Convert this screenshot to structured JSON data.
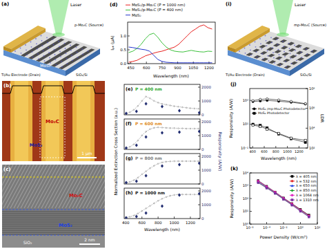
{
  "figure": {
    "panels": [
      {
        "label": "(a)",
        "texts": [
          "Laser",
          "p-Mo₂C (Source)",
          "Ti/Au Electrode (Drain)",
          "MoS₂",
          "SiO₂/Si"
        ]
      },
      {
        "label": "(b)",
        "texts": [
          "Mo₂C",
          "MoS₂",
          "1 μm"
        ]
      },
      {
        "label": "(c)",
        "texts": [
          "Mo₂C",
          "MoS₂",
          "SiO₂",
          "2 nm"
        ]
      },
      {
        "label": "(i)",
        "texts": [
          "Laser",
          "mp-Mo₂C (Source)",
          "Ti/Au Electrode (Drain)",
          "SiO₂/Si"
        ]
      }
    ]
  },
  "chart_data": [
    {
      "type": "line",
      "title": "(d)",
      "x_label": "Wavelength (nm)",
      "y_label": "Iₚₕ (μA)",
      "legend": "top",
      "x": [
        430,
        470,
        510,
        550,
        590,
        630,
        670,
        710,
        750,
        790,
        830,
        870,
        910,
        950,
        990,
        1030,
        1070,
        1110,
        1150,
        1190,
        1230
      ],
      "xlim": [
        420,
        1260
      ],
      "xticks": [
        450,
        600,
        750,
        900,
        1050,
        1200
      ],
      "ylim": [
        0,
        1.5
      ],
      "yticks": [
        {
          "value": 0,
          "label": "0.0"
        },
        {
          "value": 0.5,
          "label": "0.5"
        },
        {
          "value": 1,
          "label": "1.0"
        }
      ],
      "series": [
        {
          "name": "MoS₂/p-Mo₂C (P = 1000 nm)",
          "color": "#e8211f",
          "values": [
            0.05,
            0.08,
            0.12,
            0.2,
            0.28,
            0.33,
            0.38,
            0.42,
            0.45,
            0.5,
            0.55,
            0.6,
            0.7,
            0.85,
            1.0,
            1.15,
            1.25,
            1.35,
            1.4,
            1.3,
            1.25
          ]
        },
        {
          "name": "MoS₂/p-Mo₂C (P = 400 nm)",
          "color": "#3cc13c",
          "values": [
            0.4,
            0.45,
            0.55,
            0.7,
            0.9,
            1.05,
            1.1,
            0.95,
            0.75,
            0.6,
            0.5,
            0.45,
            0.43,
            0.42,
            0.45,
            0.48,
            0.45,
            0.43,
            0.42,
            0.45,
            0.44
          ]
        },
        {
          "name": "MoS₂",
          "color": "#2233cc",
          "values": [
            0.6,
            0.58,
            0.55,
            0.52,
            0.5,
            0.45,
            0.3,
            0.15,
            0.08,
            0.05,
            0.04,
            0.03,
            0.03,
            0.03,
            0.03,
            0.03,
            0.03,
            0.03,
            0.03,
            0.03,
            0.03
          ]
        }
      ]
    },
    {
      "type": "line",
      "title": "(e)",
      "annotations": [
        "P = 400 nm"
      ],
      "y_label": "Normalized Extinction Cross Section (a.u.)",
      "y2_label": "Responsivity (A/W)",
      "x": [
        400,
        450,
        500,
        550,
        600,
        650,
        700,
        750,
        800,
        850,
        900,
        950,
        1000,
        1050,
        1100,
        1150,
        1200,
        1250,
        1300
      ],
      "xlim": [
        380,
        1320
      ],
      "ylim": [
        0,
        1.2
      ],
      "yticks": [],
      "y2lim": [
        0,
        2200
      ],
      "y2ticks": [
        0,
        1000,
        2000
      ],
      "series": [
        {
          "color": "#888888",
          "line_style": "dotted",
          "marker": "open-circle",
          "values": [
            0.05,
            0.1,
            0.2,
            0.35,
            0.55,
            0.72,
            0.65,
            0.55,
            0.48,
            0.43,
            0.4,
            0.37,
            0.34,
            0.32,
            0.3,
            0.28,
            0.26,
            0.25,
            0.24
          ]
        },
        {
          "type": "scatter",
          "axis": "y2",
          "color": "#1f2a6e",
          "marker": "diamond",
          "x": [
            405,
            532,
            650,
            850,
            1064,
            1310
          ],
          "values": [
            100,
            250,
            800,
            600,
            300,
            150
          ]
        }
      ]
    },
    {
      "type": "line",
      "title": "(f)",
      "annotations": [
        "P = 600 nm"
      ],
      "x": [
        400,
        450,
        500,
        550,
        600,
        650,
        700,
        750,
        800,
        850,
        900,
        950,
        1000,
        1050,
        1100,
        1150,
        1200,
        1250,
        1300
      ],
      "xlim": [
        380,
        1320
      ],
      "ylim": [
        0,
        1.2
      ],
      "yticks": [],
      "y2lim": [
        0,
        2200
      ],
      "y2ticks": [
        0,
        1000,
        2000
      ],
      "series": [
        {
          "color": "#888888",
          "line_style": "dotted",
          "marker": "open-circle",
          "values": [
            0.05,
            0.1,
            0.2,
            0.35,
            0.55,
            0.7,
            0.8,
            0.85,
            0.87,
            0.86,
            0.85,
            0.84,
            0.84,
            0.83,
            0.83,
            0.82,
            0.82,
            0.82,
            0.82
          ]
        },
        {
          "type": "scatter",
          "axis": "y2",
          "color": "#1f2a6e",
          "marker": "diamond",
          "x": [
            405,
            532,
            650,
            850,
            1064,
            1310
          ],
          "values": [
            100,
            300,
            900,
            1200,
            1250,
            1300
          ]
        }
      ]
    },
    {
      "type": "line",
      "title": "(g)",
      "annotations": [
        "P = 800 nm"
      ],
      "x": [
        400,
        450,
        500,
        550,
        600,
        650,
        700,
        750,
        800,
        850,
        900,
        950,
        1000,
        1050,
        1100,
        1150,
        1200,
        1250,
        1300
      ],
      "xlim": [
        380,
        1320
      ],
      "ylim": [
        0,
        1.2
      ],
      "yticks": [],
      "y2lim": [
        0,
        2200
      ],
      "y2ticks": [
        0,
        1000,
        2000
      ],
      "series": [
        {
          "color": "#888888",
          "line_style": "dotted",
          "marker": "open-circle",
          "values": [
            0.05,
            0.08,
            0.15,
            0.25,
            0.38,
            0.5,
            0.62,
            0.72,
            0.8,
            0.85,
            0.88,
            0.89,
            0.9,
            0.9,
            0.9,
            0.9,
            0.9,
            0.9,
            0.9
          ]
        },
        {
          "type": "scatter",
          "axis": "y2",
          "color": "#1f2a6e",
          "marker": "diamond",
          "x": [
            405,
            532,
            650,
            850,
            1064,
            1310
          ],
          "values": [
            100,
            200,
            600,
            1300,
            1400,
            1500
          ]
        }
      ]
    },
    {
      "type": "line",
      "title": "(h)",
      "annotations": [
        "P = 1000 nm"
      ],
      "x_label": "Wavelength (nm)",
      "x": [
        400,
        450,
        500,
        550,
        600,
        650,
        700,
        750,
        800,
        850,
        900,
        950,
        1000,
        1050,
        1100,
        1150,
        1200,
        1250,
        1300
      ],
      "xlim": [
        380,
        1320
      ],
      "xticks": [
        400,
        600,
        800,
        1000,
        1200
      ],
      "ylim": [
        0,
        1.2
      ],
      "yticks": [],
      "y2lim": [
        0,
        2200
      ],
      "y2ticks": [
        0,
        1000,
        2000
      ],
      "series": [
        {
          "color": "#888888",
          "line_style": "dotted",
          "marker": "open-circle",
          "values": [
            0.05,
            0.07,
            0.12,
            0.2,
            0.3,
            0.4,
            0.5,
            0.6,
            0.7,
            0.78,
            0.85,
            0.9,
            0.93,
            0.95,
            0.95,
            0.95,
            0.95,
            0.95,
            0.95
          ]
        },
        {
          "type": "scatter",
          "axis": "y2",
          "color": "#1f2a6e",
          "marker": "diamond",
          "x": [
            405,
            532,
            650,
            850,
            1064,
            1310
          ],
          "values": [
            50,
            150,
            400,
            900,
            1700,
            1800
          ]
        }
      ]
    },
    {
      "type": "line",
      "title": "(j)",
      "x_label": "Wavelength (nm)",
      "y_label": "Responsivity (A/W)",
      "y2_label": "LDR",
      "log": "y",
      "legend": "left",
      "x": [
        405,
        532,
        650,
        850,
        1064,
        1310
      ],
      "xlim": [
        350,
        1350
      ],
      "xticks": [
        400,
        600,
        800,
        1000,
        1200
      ],
      "ylim": [
        0.1,
        10000
      ],
      "yticks": [
        {
          "value": 0.1,
          "label": "10⁻¹"
        },
        {
          "value": 10,
          "label": "10¹"
        },
        {
          "value": 1000,
          "label": "10³"
        }
      ],
      "y2lim": [
        100,
        100000000
      ],
      "y2ticks": [
        {
          "value": 100,
          "label": "10²"
        },
        {
          "value": 10000,
          "label": "10⁴"
        },
        {
          "value": 1000000,
          "label": "10⁶"
        },
        {
          "value": 100000000,
          "label": "10⁸"
        }
      ],
      "series": [
        {
          "name": "MoS₂ /mp-Mo₂C Photodetector",
          "color": "#000000",
          "marker": "circle",
          "values": [
            800,
            900,
            1000,
            850,
            700,
            500
          ]
        },
        {
          "name": "MoS₂ Photodetector",
          "color": "#000000",
          "marker": "square",
          "values": [
            10,
            8,
            5,
            1.5,
            0.6,
            0.3
          ]
        },
        {
          "color": "#000000",
          "marker": "open-circle",
          "axis": "y2",
          "values": [
            6000000,
            8000000,
            9000000,
            7000000,
            5000000,
            3000000
          ]
        },
        {
          "color": "#000000",
          "marker": "open-square",
          "axis": "y2",
          "values": [
            20000,
            15000,
            8000,
            3000,
            1000,
            600
          ]
        }
      ]
    },
    {
      "type": "line",
      "title": "(k)",
      "x_label": "Power Density (W/cm²)",
      "y_label": "Responsivity (A/W)",
      "log": true,
      "legend": "top-right",
      "x": [
        1e-05,
        0.0001,
        0.001,
        0.01,
        0.1,
        1,
        10
      ],
      "xlim": [
        1e-06,
        100
      ],
      "xticks": [
        {
          "value": 1e-06,
          "label": "10⁻⁶"
        },
        {
          "value": 0.0001,
          "label": "10⁻⁴"
        },
        {
          "value": 0.01,
          "label": "10⁻²"
        },
        {
          "value": 1,
          "label": "10⁰"
        },
        {
          "value": 100,
          "label": "10²"
        }
      ],
      "ylim": [
        1,
        10000
      ],
      "yticks": [
        {
          "value": 1,
          "label": "10⁰"
        },
        {
          "value": 10,
          "label": "10¹"
        },
        {
          "value": 100,
          "label": "10²"
        },
        {
          "value": 1000,
          "label": "10³"
        },
        {
          "value": 10000,
          "label": "10⁴"
        }
      ],
      "series": [
        {
          "name": "λ = 405 nm",
          "color": "#000000",
          "marker": "square",
          "values": [
            2500,
            900,
            320,
            110,
            40,
            14,
            5
          ]
        },
        {
          "name": "λ = 532 nm",
          "color": "#e02020",
          "marker": "circle",
          "values": [
            2200,
            800,
            300,
            100,
            38,
            13,
            4.5
          ]
        },
        {
          "name": "λ = 650 nm",
          "color": "#2040e0",
          "marker": "triangle",
          "values": [
            2000,
            750,
            280,
            95,
            35,
            12,
            4.2
          ]
        },
        {
          "name": "λ = 850 nm",
          "color": "#10a020",
          "marker": "diamond",
          "values": [
            1800,
            700,
            260,
            90,
            33,
            11,
            4
          ]
        },
        {
          "name": "λ = 1064 nm",
          "color": "#e020c0",
          "marker": "circle",
          "values": [
            2300,
            850,
            310,
            105,
            36,
            12,
            4.4
          ]
        },
        {
          "name": "λ = 1310 nm",
          "color": "#7a2fa0",
          "marker": "square",
          "values": [
            1700,
            650,
            250,
            85,
            30,
            10,
            3.6
          ]
        }
      ]
    }
  ]
}
